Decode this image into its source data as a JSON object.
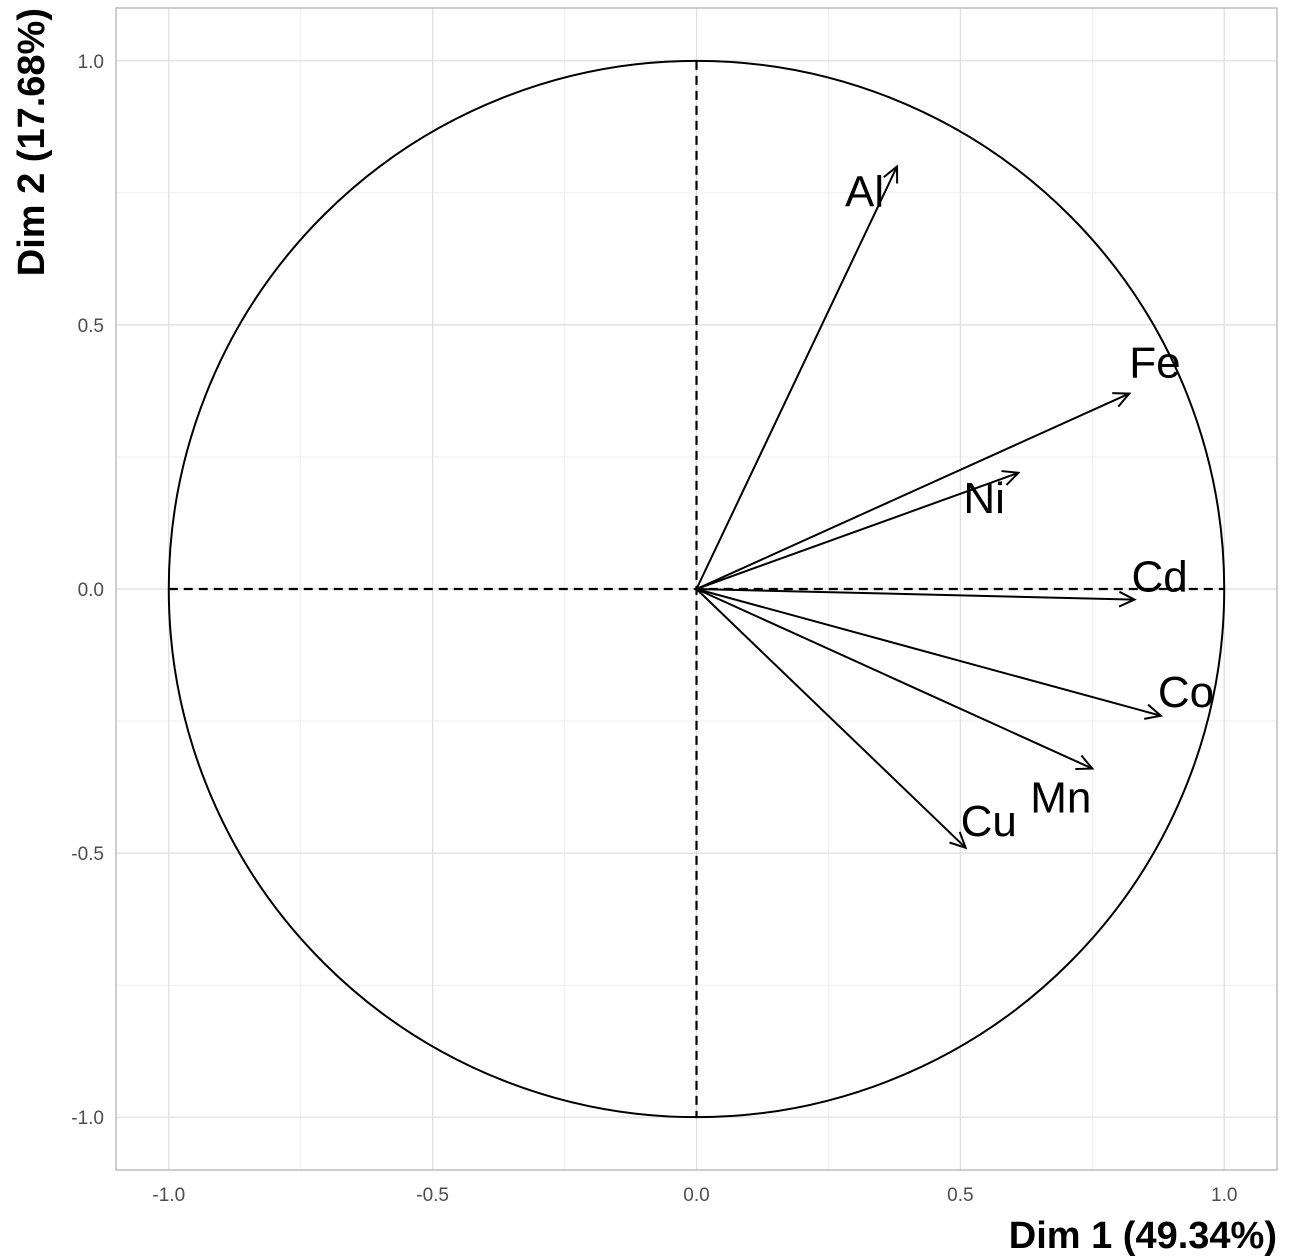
{
  "chart_data": {
    "type": "scatter",
    "subtype": "pca-variable-correlation-circle",
    "title": "",
    "xlabel": "Dim 1 (49.34%)",
    "ylabel": "Dim 2 (17.68%)",
    "xlim": [
      -1.1,
      1.1
    ],
    "ylim": [
      -1.1,
      1.1
    ],
    "x_ticks": [
      {
        "value": -1.0,
        "label": "-1.0"
      },
      {
        "value": -0.5,
        "label": "-0.5"
      },
      {
        "value": 0.0,
        "label": "0.0"
      },
      {
        "value": 0.5,
        "label": "0.5"
      },
      {
        "value": 1.0,
        "label": "1.0"
      }
    ],
    "y_ticks": [
      {
        "value": -1.0,
        "label": "-1.0"
      },
      {
        "value": -0.5,
        "label": "-0.5"
      },
      {
        "value": 0.0,
        "label": "0.0"
      },
      {
        "value": 0.5,
        "label": "0.5"
      },
      {
        "value": 1.0,
        "label": "1.0"
      }
    ],
    "grid": true,
    "unit_circle": true,
    "reference_lines": "dashed at x=0 and y=0",
    "colors": {
      "arrows": "#000000",
      "grid": "#dedede",
      "border": "#b3b3b3",
      "tick_text": "#4d4d4d"
    },
    "variables": [
      {
        "name": "Al",
        "x": 0.38,
        "y": 0.8
      },
      {
        "name": "Fe",
        "x": 0.82,
        "y": 0.37
      },
      {
        "name": "Ni",
        "x": 0.61,
        "y": 0.22
      },
      {
        "name": "Cd",
        "x": 0.83,
        "y": -0.02
      },
      {
        "name": "Co",
        "x": 0.88,
        "y": -0.24
      },
      {
        "name": "Mn",
        "x": 0.75,
        "y": -0.34
      },
      {
        "name": "Cu",
        "x": 0.51,
        "y": -0.49
      }
    ]
  }
}
